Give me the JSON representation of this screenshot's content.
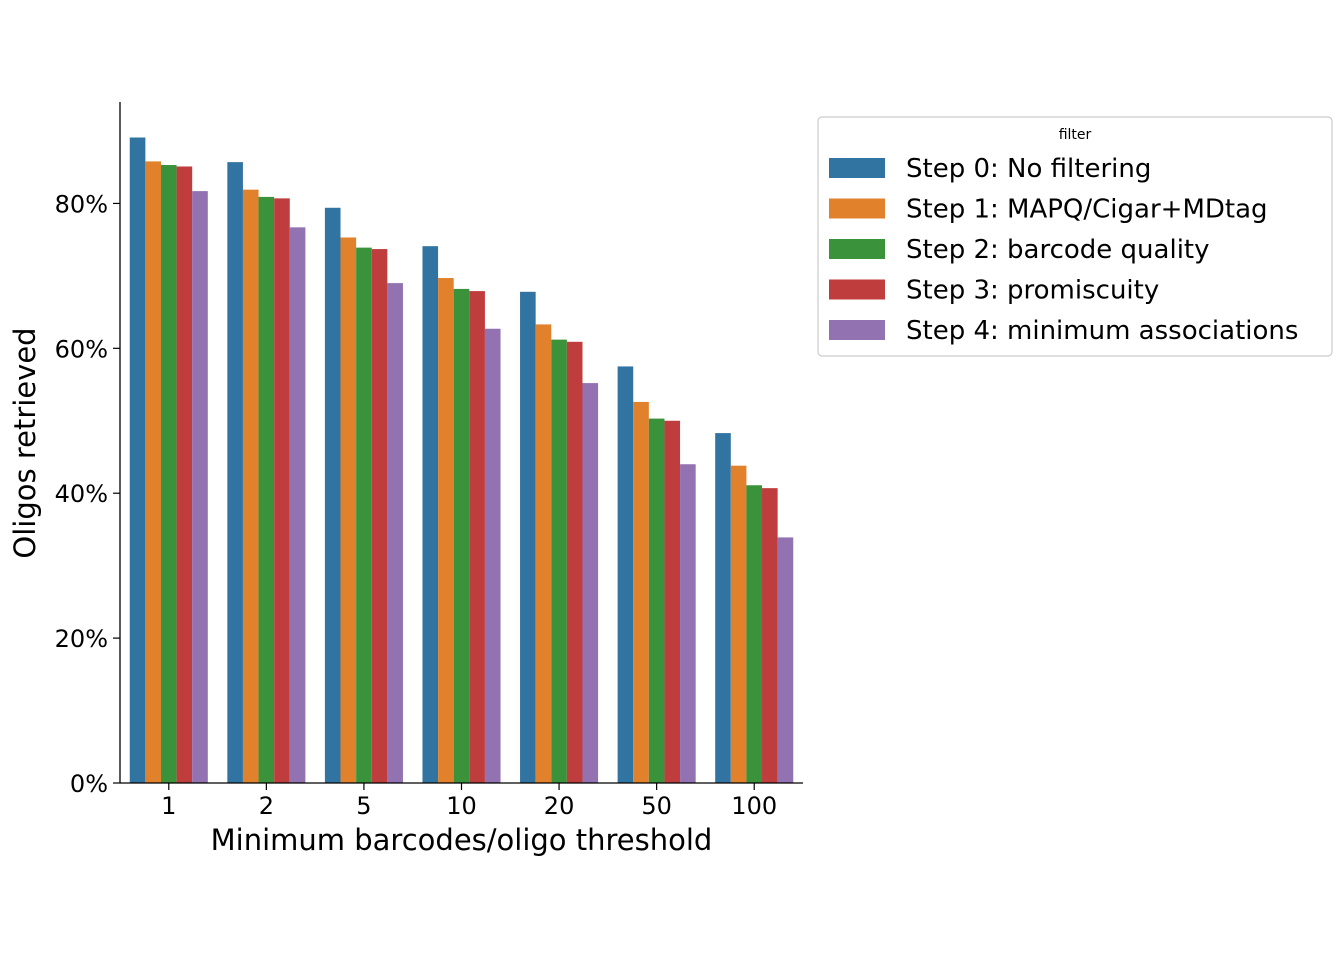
{
  "chart_data": {
    "type": "bar",
    "title": "",
    "xlabel": "Minimum barcodes/oligo threshold",
    "ylabel": "Oligos retrieved",
    "categories": [
      "1",
      "2",
      "5",
      "10",
      "20",
      "50",
      "100"
    ],
    "ylim": [
      0,
      0.94
    ],
    "yticks": [
      0,
      0.2,
      0.4,
      0.6,
      0.8
    ],
    "ytick_labels": [
      "0%",
      "20%",
      "40%",
      "60%",
      "80%"
    ],
    "grid": false,
    "legend": {
      "title": "filter",
      "placement": "outside-top-right"
    },
    "series": [
      {
        "name": "Step 0: No filtering",
        "color": "#3274a1",
        "values": [
          0.891,
          0.857,
          0.794,
          0.741,
          0.678,
          0.575,
          0.483
        ]
      },
      {
        "name": "Step 1: MAPQ/Cigar+MDtag",
        "color": "#e1812c",
        "values": [
          0.858,
          0.819,
          0.753,
          0.697,
          0.633,
          0.526,
          0.438
        ]
      },
      {
        "name": "Step 2: barcode quality",
        "color": "#3a923a",
        "values": [
          0.853,
          0.809,
          0.739,
          0.682,
          0.612,
          0.503,
          0.411
        ]
      },
      {
        "name": "Step 3: promiscuity",
        "color": "#c03d3e",
        "values": [
          0.851,
          0.807,
          0.737,
          0.679,
          0.609,
          0.5,
          0.407
        ]
      },
      {
        "name": "Step 4: minimum associations",
        "color": "#9372b2",
        "values": [
          0.817,
          0.767,
          0.69,
          0.627,
          0.552,
          0.44,
          0.339
        ]
      }
    ]
  }
}
